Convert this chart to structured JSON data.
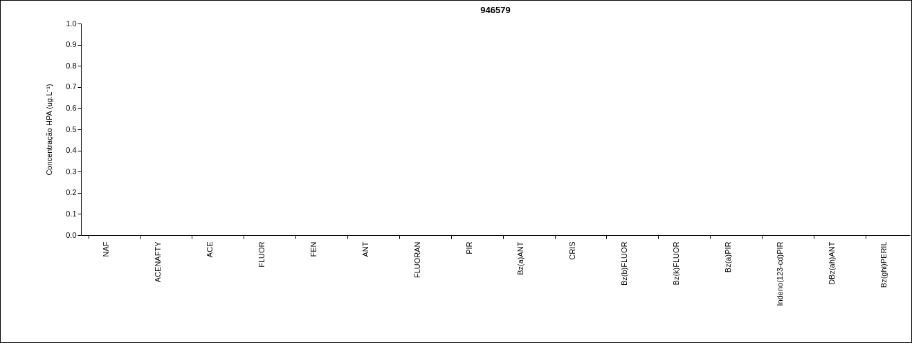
{
  "chart_data": {
    "type": "bar",
    "title": "946579",
    "ylabel": "Concentração HPA (ug.L⁻¹)",
    "categories": [
      "NAF",
      "ACENAFTY",
      "ACE",
      "FLUOR",
      "FEN",
      "ANT",
      "FLUORAN",
      "PIR",
      "Bz(a)ANT",
      "CRIS",
      "Bz(b)FLUOR",
      "Bz(k)FLUOR",
      "Bz(a)PIR",
      "Indeno(123-cd)PIR",
      "DBz(ah)ANT",
      "Bz(ghi)PERIL"
    ],
    "values": [
      null,
      null,
      null,
      null,
      null,
      null,
      null,
      null,
      null,
      null,
      null,
      null,
      null,
      null,
      null,
      null
    ],
    "ylim": [
      0,
      1
    ],
    "yticks": [
      {
        "value": 0,
        "label": "0.0"
      },
      {
        "value": 0.1,
        "label": "0.1"
      },
      {
        "value": 0.2,
        "label": "0.2"
      },
      {
        "value": 0.3,
        "label": "0.3"
      },
      {
        "value": 0.4,
        "label": "0.4"
      },
      {
        "value": 0.5,
        "label": "0.5"
      },
      {
        "value": 0.6,
        "label": "0.6"
      },
      {
        "value": 0.7,
        "label": "0.7"
      },
      {
        "value": 0.8,
        "label": "0.8"
      },
      {
        "value": 0.9,
        "label": "0.9"
      },
      {
        "value": 1,
        "label": "1.0"
      }
    ],
    "grid": false
  }
}
